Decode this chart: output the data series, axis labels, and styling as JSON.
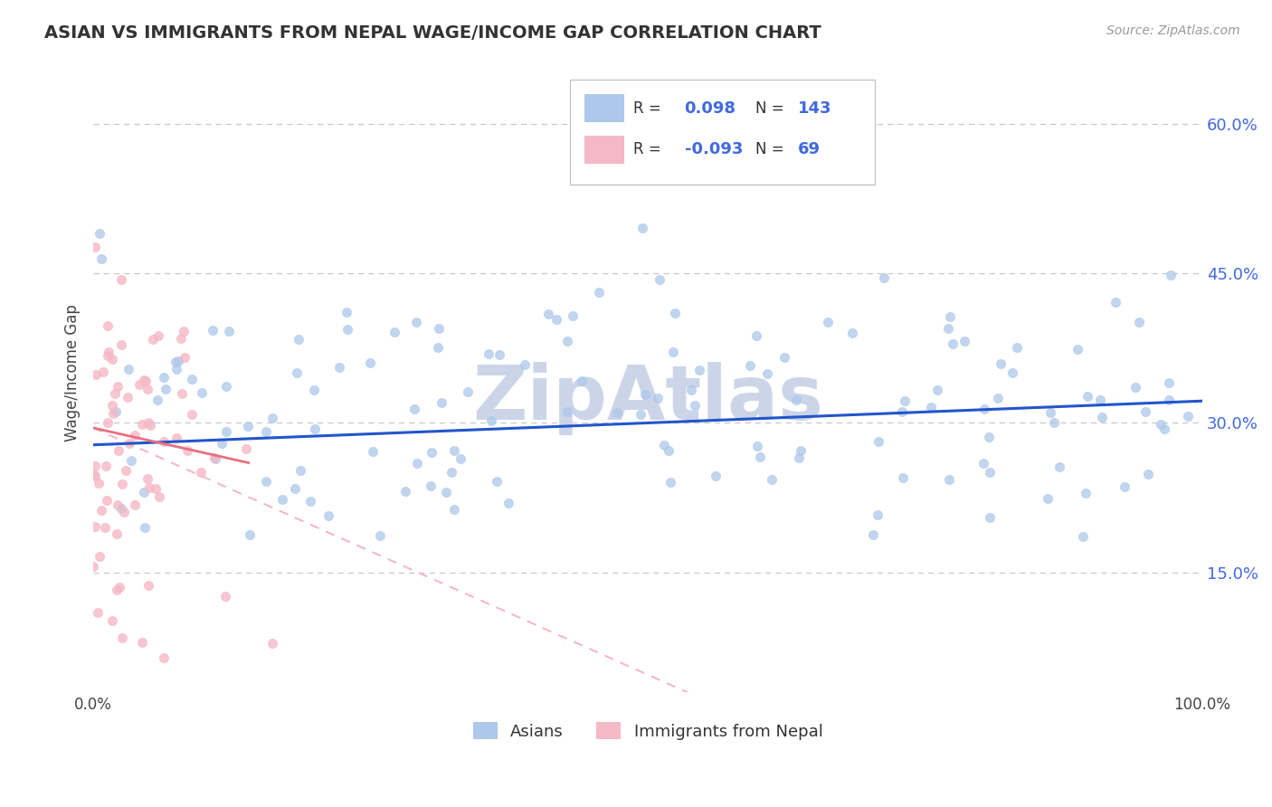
{
  "title": "ASIAN VS IMMIGRANTS FROM NEPAL WAGE/INCOME GAP CORRELATION CHART",
  "source_text": "Source: ZipAtlas.com",
  "ylabel": "Wage/Income Gap",
  "x_min": 0.0,
  "x_max": 1.0,
  "y_min": 0.03,
  "y_max": 0.67,
  "y_ticks": [
    0.15,
    0.3,
    0.45,
    0.6
  ],
  "y_tick_labels": [
    "15.0%",
    "30.0%",
    "45.0%",
    "60.0%"
  ],
  "x_tick_labels": [
    "0.0%",
    "100.0%"
  ],
  "legend_text_color": "#4169e1",
  "grid_color": "#c8c8c8",
  "title_color": "#333333",
  "watermark_text": "ZipAtlas",
  "watermark_color": "#ccd5e8",
  "background_color": "#ffffff",
  "blue_scatter_color": "#adc8ea",
  "pink_scatter_color": "#f5b8c5",
  "blue_line_color": "#2255cc",
  "pink_solid_color": "#e87080",
  "pink_dash_color": "#f5b8c5",
  "blue_N": 143,
  "pink_N": 69,
  "seed_blue": 42,
  "seed_pink": 7
}
